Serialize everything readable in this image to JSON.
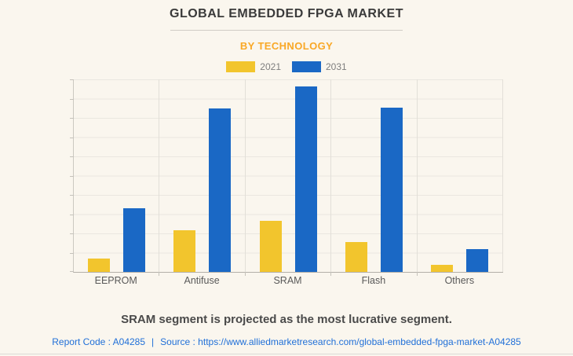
{
  "page": {
    "background_color": "#FAF6EE",
    "title": "GLOBAL EMBEDDED FPGA MARKET",
    "subtitle": "BY TECHNOLOGY",
    "note": "SRAM segment is projected as the most lucrative segment.",
    "footer": {
      "report_code": "Report Code : A04285",
      "separator": "|",
      "source": "Source : https://www.alliedmarketresearch.com/global-embedded-fpga-market-A04285"
    },
    "colors": {
      "title_text": "#3A3A3A",
      "subtitle_text": "#F9A826",
      "note_text": "#4A4A4A",
      "footer_link": "#2170D8",
      "gridline": "#EAE7E0",
      "axis_line": "#B3B0A9"
    }
  },
  "chart_data": {
    "type": "bar",
    "title": "GLOBAL EMBEDDED FPGA MARKET",
    "subtitle": "BY TECHNOLOGY",
    "categories": [
      "EEPROM",
      "Antifuse",
      "SRAM",
      "Flash",
      "Others"
    ],
    "series": [
      {
        "name": "2021",
        "color": "#F2C52D",
        "values": [
          7,
          21.5,
          26.5,
          15.5,
          3.5
        ]
      },
      {
        "name": "2031",
        "color": "#1A68C5",
        "values": [
          33,
          85,
          96.5,
          85.5,
          12
        ]
      }
    ],
    "ylabel": "",
    "xlabel": "",
    "ylim": [
      0,
      100
    ],
    "grid_rows": 10,
    "y_tick_labels_visible": false,
    "grid": true,
    "legend_position": "top"
  }
}
